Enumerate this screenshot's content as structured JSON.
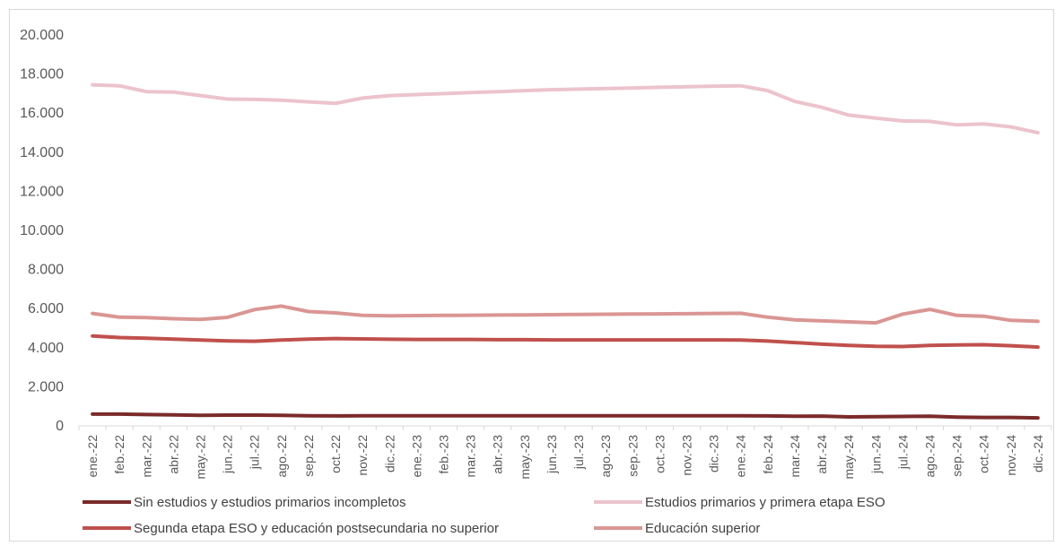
{
  "chart_data": {
    "type": "line",
    "title": "",
    "xlabel": "",
    "ylabel": "",
    "ylim": [
      0,
      20000
    ],
    "y_ticks": [
      "0",
      "2.000",
      "4.000",
      "6.000",
      "8.000",
      "10.000",
      "12.000",
      "14.000",
      "16.000",
      "18.000",
      "20.000"
    ],
    "y_tick_values": [
      0,
      2000,
      4000,
      6000,
      8000,
      10000,
      12000,
      14000,
      16000,
      18000,
      20000
    ],
    "grid": false,
    "legend_position": "bottom",
    "categories": [
      "ene.-22",
      "feb.-22",
      "mar.-22",
      "abr.-22",
      "may.-22",
      "jun.-22",
      "jul.-22",
      "ago.-22",
      "sep.-22",
      "oct.-22",
      "nov.-22",
      "dic.-22",
      "ene.-23",
      "feb.-23",
      "mar.-23",
      "abr.-23",
      "may.-23",
      "jun.-23",
      "jul.-23",
      "ago.-23",
      "sep.-23",
      "oct.-23",
      "nov.-23",
      "dic.-23",
      "ene.-24",
      "feb.-24",
      "mar.-24",
      "abr.-24",
      "may.-24",
      "jun.-24",
      "jul.-24",
      "ago.-24",
      "sep.-24",
      "oct.-24",
      "nov.-24",
      "dic.-24"
    ],
    "series": [
      {
        "name": "Sin estudios y estudios primarios incompletos",
        "color": "#7b2a2a",
        "values": [
          600,
          600,
          580,
          560,
          540,
          550,
          550,
          540,
          520,
          510,
          520,
          520,
          520,
          520,
          520,
          520,
          520,
          520,
          520,
          520,
          520,
          520,
          520,
          520,
          520,
          510,
          490,
          500,
          460,
          470,
          480,
          490,
          450,
          430,
          430,
          410
        ]
      },
      {
        "name": "Estudios primarios y primera etapa ESO",
        "color": "#ecc3cd",
        "values": [
          17450,
          17400,
          17100,
          17080,
          16900,
          16720,
          16700,
          16660,
          16580,
          16500,
          16770,
          16900,
          16950,
          17000,
          17050,
          17100,
          17150,
          17200,
          17230,
          17260,
          17290,
          17320,
          17350,
          17380,
          17400,
          17150,
          16600,
          16300,
          15900,
          15750,
          15600,
          15580,
          15400,
          15450,
          15300,
          15000
        ]
      },
      {
        "name": "Segunda etapa ESO y educación postsecundaria no superior",
        "color": "#c0504d",
        "values": [
          4600,
          4520,
          4480,
          4440,
          4390,
          4350,
          4330,
          4390,
          4440,
          4470,
          4450,
          4430,
          4420,
          4420,
          4420,
          4410,
          4410,
          4400,
          4400,
          4400,
          4400,
          4400,
          4400,
          4400,
          4390,
          4340,
          4260,
          4180,
          4120,
          4070,
          4060,
          4120,
          4140,
          4150,
          4100,
          4030
        ]
      },
      {
        "name": "Educación superior",
        "color": "#da9694",
        "values": [
          5750,
          5560,
          5540,
          5480,
          5450,
          5550,
          5950,
          6130,
          5850,
          5780,
          5650,
          5630,
          5640,
          5650,
          5660,
          5670,
          5680,
          5690,
          5700,
          5710,
          5720,
          5730,
          5740,
          5750,
          5760,
          5560,
          5420,
          5370,
          5320,
          5270,
          5720,
          5960,
          5650,
          5610,
          5400,
          5350
        ]
      }
    ]
  }
}
